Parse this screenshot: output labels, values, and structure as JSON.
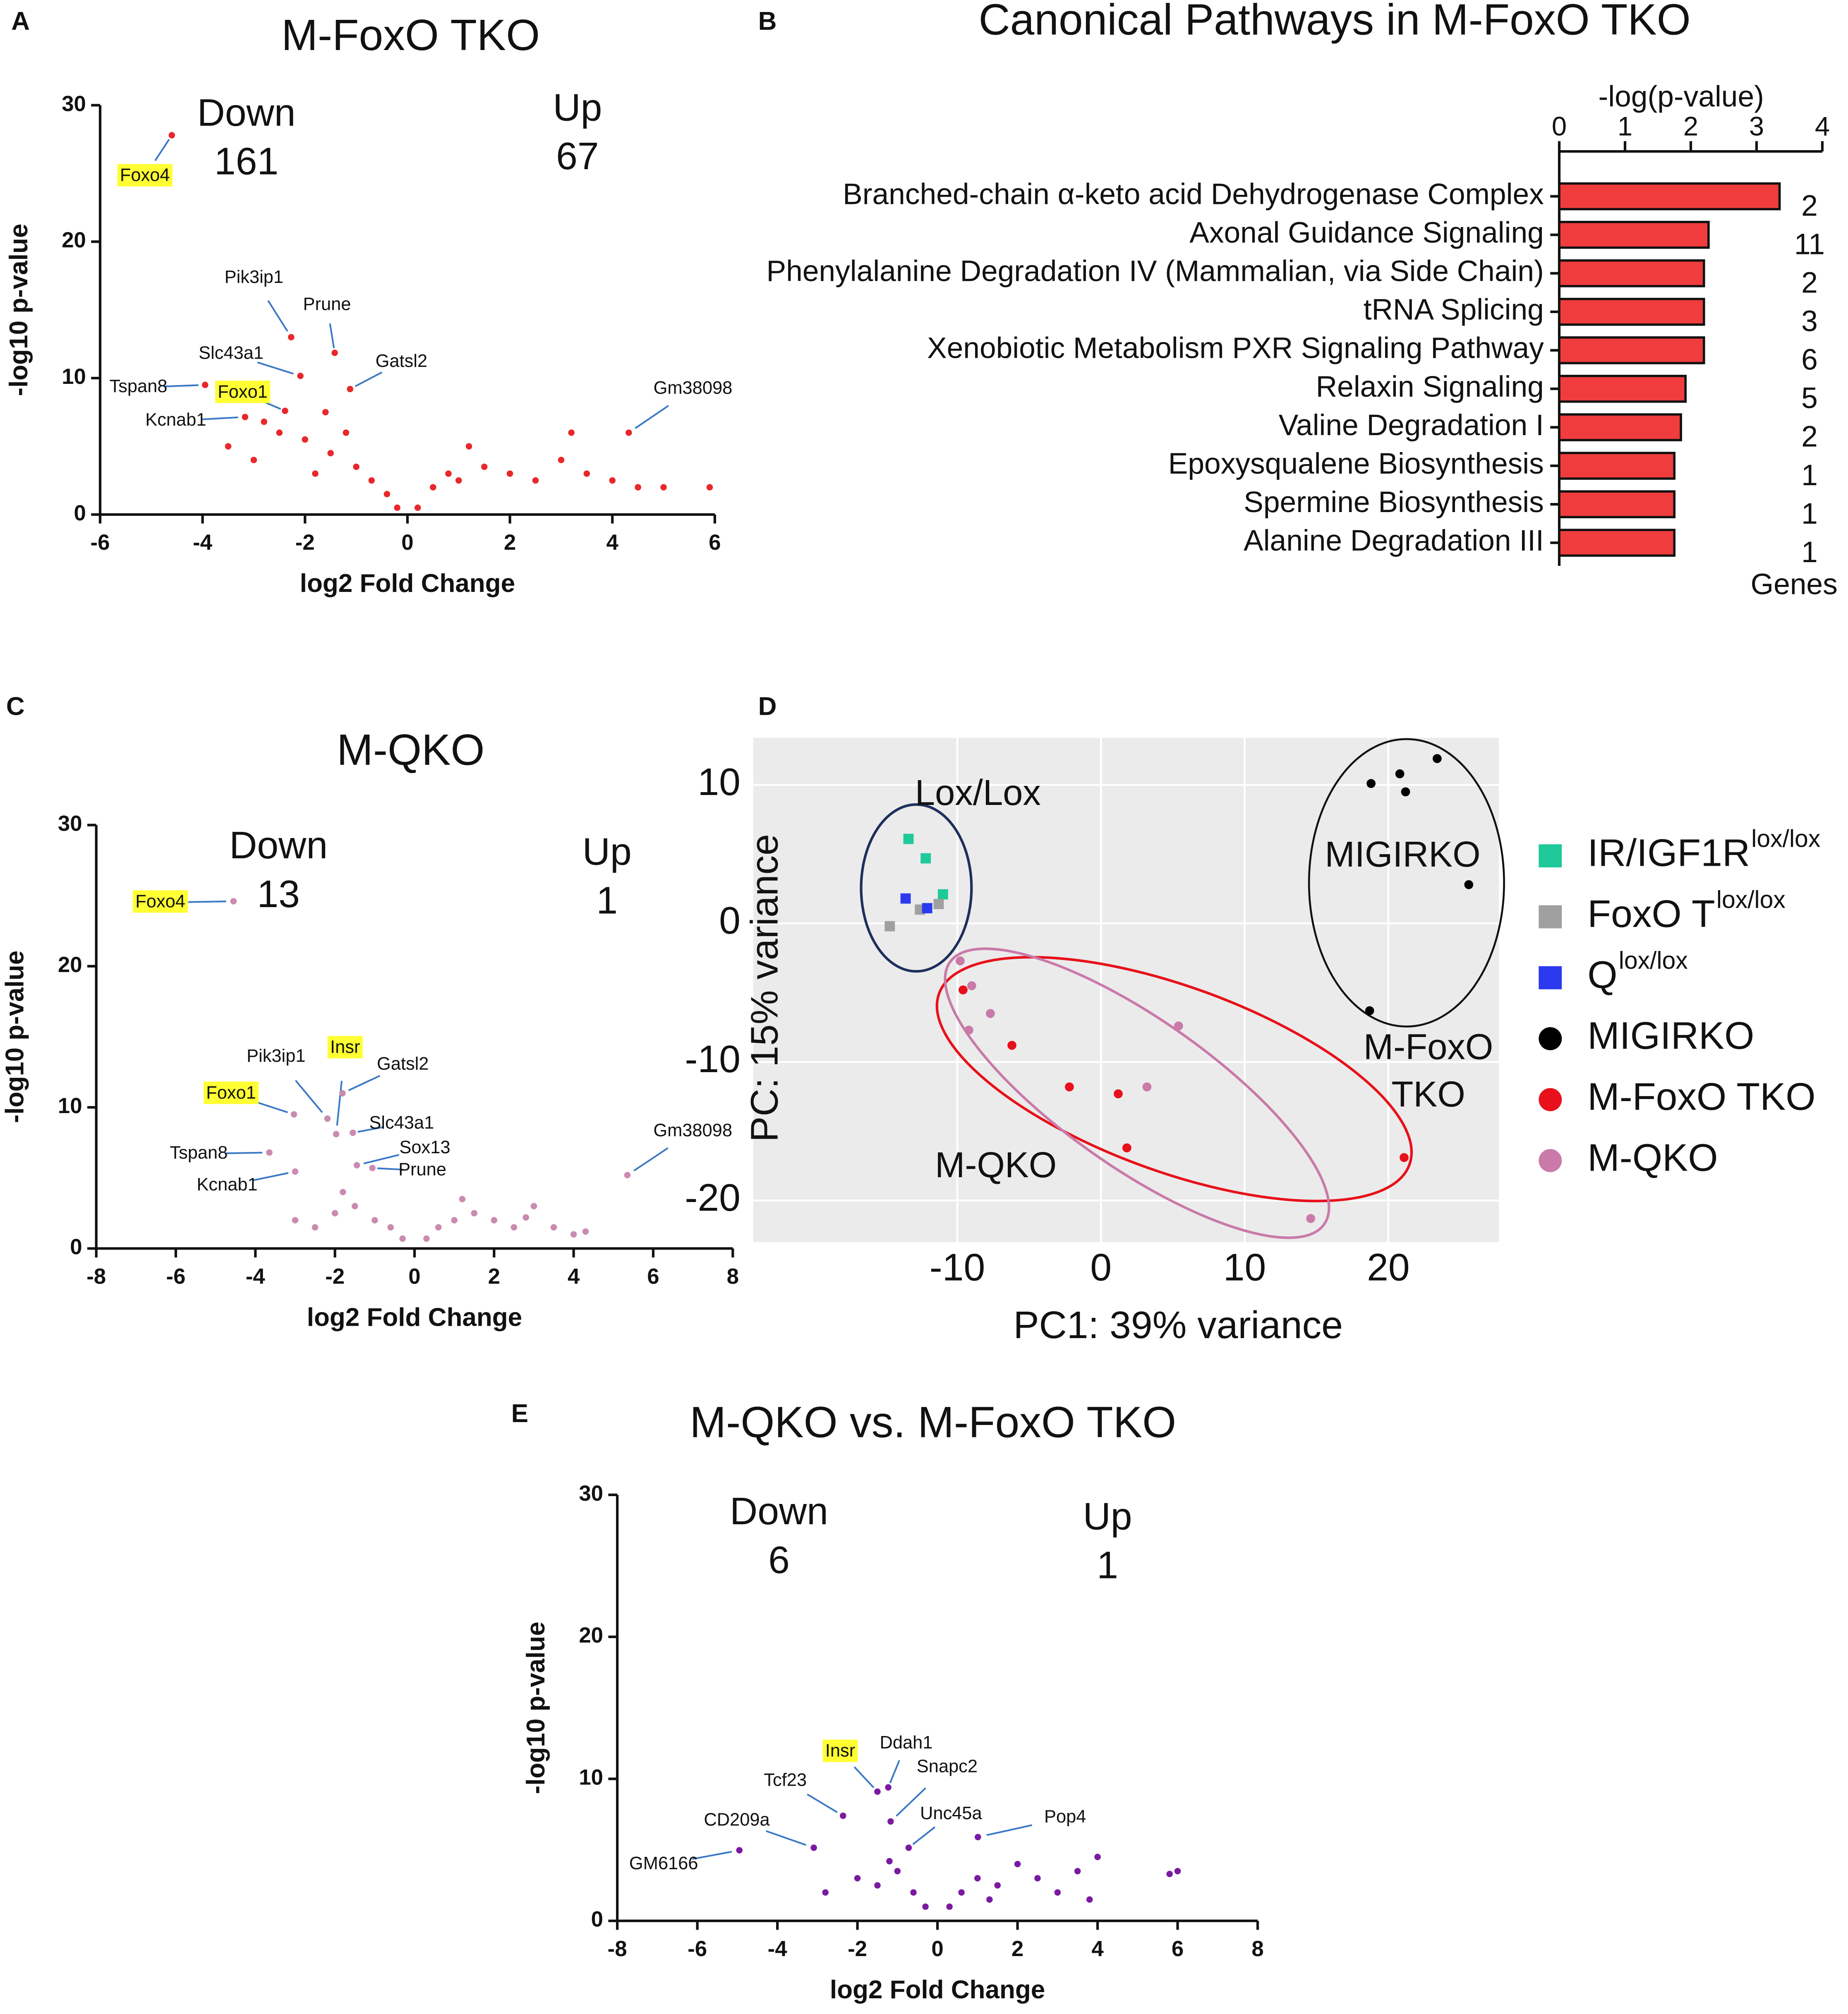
{
  "chart_data": [
    {
      "type": "volcano",
      "panel": "A",
      "title": "M-FoxO TKO",
      "xlabel": "log2 Fold Change",
      "ylabel": "-log10 p-value",
      "xlim": [
        -6,
        6
      ],
      "xticks": [
        -6,
        -4,
        -2,
        0,
        2,
        4,
        6
      ],
      "ylim": [
        0,
        30
      ],
      "yticks": [
        0,
        10,
        20,
        30
      ],
      "color": "#e8282a",
      "down": {
        "label": "Down",
        "count": 161,
        "color": "#2c3e70"
      },
      "up": {
        "label": "Up",
        "count": 67,
        "color": "#e8141a"
      },
      "x": [
        -3.5,
        -3,
        -2.5,
        -2,
        -1.8,
        -1.5,
        -1.2,
        -1,
        -0.7,
        -0.4,
        -0.2,
        0.2,
        0.5,
        0.8,
        1,
        1.5,
        2,
        2.5,
        3,
        3.5,
        4,
        5,
        5.9,
        3.2,
        1.2,
        -2.8,
        -1.6,
        4.5
      ],
      "y": [
        5,
        4,
        6,
        5.5,
        3,
        4.5,
        6,
        3.5,
        2.5,
        1.5,
        0.5,
        0.5,
        2,
        3,
        2.5,
        3.5,
        3,
        2.5,
        4,
        3,
        2.5,
        2,
        2,
        6,
        5,
        6.8,
        7.5,
        2
      ],
      "points": [
        {
          "label": "Foxo4",
          "x": -4.6,
          "y": 27.8,
          "highlight": true
        },
        {
          "label": "Pik3ip1",
          "x": -2.27,
          "y": 13.0,
          "highlight": false
        },
        {
          "label": "Prune",
          "x": -1.42,
          "y": 11.85,
          "highlight": false
        },
        {
          "label": "Slc43a1",
          "x": -2.09,
          "y": 10.16,
          "highlight": false
        },
        {
          "label": "Gatsl2",
          "x": -1.12,
          "y": 9.2,
          "highlight": false
        },
        {
          "label": "Tspan8",
          "x": -3.95,
          "y": 9.5,
          "highlight": false
        },
        {
          "label": "Foxo1",
          "x": -2.39,
          "y": 7.6,
          "highlight": true
        },
        {
          "label": "Kcnab1",
          "x": -3.17,
          "y": 7.15,
          "highlight": false
        },
        {
          "label": "Gm38098",
          "x": 4.32,
          "y": 6.0,
          "highlight": false
        }
      ]
    },
    {
      "type": "bar",
      "orientation": "horizontal",
      "panel": "B",
      "title": "Canonical Pathways in M-FoxO TKO",
      "xlabel": "-log(p-value)",
      "genes_label": "Genes",
      "xlim": [
        0,
        4
      ],
      "xticks": [
        0,
        1,
        2,
        3,
        4
      ],
      "color": "#f03c3c",
      "categories": [
        "Branched-chain α-keto acid Dehydrogenase Complex",
        "Axonal Guidance Signaling",
        "Phenylalanine Degradation IV (Mammalian, via Side Chain)",
        "tRNA Splicing",
        "Xenobiotic Metabolism PXR Signaling Pathway",
        "Relaxin Signaling",
        "Valine Degradation I",
        "Epoxysqualene Biosynthesis",
        "Spermine Biosynthesis",
        "Alanine Degradation III"
      ],
      "values": [
        3.35,
        2.27,
        2.2,
        2.2,
        2.2,
        1.92,
        1.85,
        1.75,
        1.75,
        1.75
      ],
      "genes": [
        2,
        11,
        2,
        3,
        6,
        5,
        2,
        1,
        1,
        1
      ]
    },
    {
      "type": "volcano",
      "panel": "C",
      "title": "M-QKO",
      "xlabel": "log2 Fold Change",
      "ylabel": "-log10 p-value",
      "xlim": [
        -8,
        8
      ],
      "xticks": [
        -8,
        -6,
        -4,
        -2,
        0,
        2,
        4,
        6,
        8
      ],
      "ylim": [
        0,
        30
      ],
      "yticks": [
        0,
        10,
        20,
        30
      ],
      "color": "#c98bb0",
      "down": {
        "label": "Down",
        "count": 13,
        "color": "#2c3e70"
      },
      "up": {
        "label": "Up",
        "count": 1,
        "color": "#e8141a"
      },
      "x": [
        -3,
        -2.5,
        -2,
        -1.5,
        -1,
        -0.6,
        -0.3,
        0.3,
        0.6,
        1,
        1.5,
        2,
        2.5,
        3,
        3.5,
        4,
        4.3,
        -1.8,
        1.2,
        2.8
      ],
      "y": [
        2,
        1.5,
        2.5,
        3,
        2,
        1.5,
        0.7,
        0.7,
        1.5,
        2,
        2.5,
        2,
        1.5,
        3,
        1.5,
        1,
        1.2,
        4,
        3.5,
        2.2
      ],
      "points": [
        {
          "label": "Foxo4",
          "x": -4.55,
          "y": 24.6,
          "highlight": true
        },
        {
          "label": "Pik3ip1",
          "x": -2.19,
          "y": 9.2,
          "highlight": false
        },
        {
          "label": "Insr",
          "x": -1.97,
          "y": 8.1,
          "highlight": true
        },
        {
          "label": "Gatsl2",
          "x": -1.81,
          "y": 11.0,
          "highlight": false
        },
        {
          "label": "Foxo1",
          "x": -3.03,
          "y": 9.5,
          "highlight": true
        },
        {
          "label": "Slc43a1",
          "x": -1.55,
          "y": 8.2,
          "highlight": false
        },
        {
          "label": "Sox13",
          "x": -1.45,
          "y": 5.9,
          "highlight": false
        },
        {
          "label": "Prune",
          "x": -1.06,
          "y": 5.7,
          "highlight": false
        },
        {
          "label": "Tspan8",
          "x": -3.65,
          "y": 6.8,
          "highlight": false
        },
        {
          "label": "Kcnab1",
          "x": -3.0,
          "y": 5.45,
          "highlight": false
        },
        {
          "label": "Gm38098",
          "x": 5.35,
          "y": 5.2,
          "highlight": false
        }
      ]
    },
    {
      "type": "scatter",
      "panel": "D",
      "xlabel": "PC1: 39% variance",
      "ylabel": "PC: 15% variance",
      "xlim": [
        -24.2,
        27.7
      ],
      "xticks": [
        -10,
        0,
        10,
        20
      ],
      "ylim": [
        -23.0,
        13.4
      ],
      "yticks": [
        -20,
        -10,
        0,
        10
      ],
      "grid": true,
      "series": [
        {
          "name": "IR/IGF1R",
          "superscript": "lox/lox",
          "color": "#1ec99a",
          "marker": "square",
          "x": [
            -13.4,
            -12.2,
            -11.0
          ],
          "y": [
            6.1,
            4.7,
            2.1
          ]
        },
        {
          "name": "FoxO T",
          "superscript": "lox/lox",
          "color": "#a0a0a0",
          "marker": "square",
          "x": [
            -14.7,
            -12.6,
            -11.3
          ],
          "y": [
            -0.2,
            1.0,
            1.4
          ]
        },
        {
          "name": "Q",
          "superscript": "lox/lox",
          "color": "#2b3aef",
          "marker": "square",
          "x": [
            -13.6,
            -12.1
          ],
          "y": [
            1.8,
            1.1
          ]
        },
        {
          "name": "MIGIRKO",
          "color": "#000000",
          "marker": "circle",
          "x": [
            18.8,
            20.8,
            21.2,
            23.4,
            25.6,
            18.7
          ],
          "y": [
            10.1,
            10.8,
            9.5,
            11.9,
            2.8,
            -6.3
          ]
        },
        {
          "name": "M-FoxO TKO",
          "color": "#e8101a",
          "marker": "circle",
          "x": [
            -9.6,
            -6.2,
            -2.2,
            1.2,
            1.8,
            21.1
          ],
          "y": [
            -4.8,
            -8.8,
            -11.8,
            -12.3,
            -16.2,
            -16.9
          ]
        },
        {
          "name": "M-QKO",
          "color": "#c97aa8",
          "marker": "circle",
          "x": [
            -9.8,
            -9.0,
            -9.2,
            -7.7,
            3.2,
            5.4,
            14.6
          ],
          "y": [
            -2.7,
            -4.5,
            -7.7,
            -6.5,
            -11.8,
            -7.4,
            -21.3
          ]
        }
      ],
      "annotations": [
        {
          "text": "Lox/Lox",
          "color": "#111111"
        },
        {
          "text": "MIGIRKO",
          "color": "#111111"
        },
        {
          "text": "M-FoxO",
          "color": "#e8101a"
        },
        {
          "text": "TKO",
          "color": "#e8101a"
        },
        {
          "text": "M-QKO",
          "color": "#c97aa8"
        }
      ]
    },
    {
      "type": "volcano",
      "panel": "E",
      "title": "M-QKO vs. M-FoxO TKO",
      "xlabel": "log2 Fold Change",
      "ylabel": "-log10 p-value",
      "xlim": [
        -8,
        8
      ],
      "xticks": [
        -8,
        -6,
        -4,
        -2,
        0,
        2,
        4,
        6,
        8
      ],
      "ylim": [
        0,
        30
      ],
      "yticks": [
        0,
        10,
        20,
        30
      ],
      "color": "#7a1aa0",
      "down": {
        "label": "Down",
        "count": 6,
        "color": "#2c3e70"
      },
      "up": {
        "label": "Up",
        "count": 1,
        "color": "#e8141a"
      },
      "x": [
        -2.8,
        -2,
        -1.5,
        -1,
        -0.6,
        -0.3,
        0.3,
        0.6,
        1,
        1.5,
        2,
        2.5,
        3,
        3.5,
        4,
        6,
        5.8,
        -1.2,
        1.3,
        3.8
      ],
      "y": [
        2,
        3,
        2.5,
        3.5,
        2,
        1,
        1,
        2,
        3,
        2.5,
        4,
        3,
        2,
        3.5,
        4.5,
        3.5,
        3.3,
        4.2,
        1.5,
        1.5
      ],
      "points": [
        {
          "label": "Insr",
          "x": -1.5,
          "y": 9.1,
          "highlight": true
        },
        {
          "label": "Ddah1",
          "x": -1.23,
          "y": 9.4,
          "highlight": false
        },
        {
          "label": "Tcf23",
          "x": -2.36,
          "y": 7.4,
          "highlight": false
        },
        {
          "label": "Snapc2",
          "x": -1.17,
          "y": 7.0,
          "highlight": false
        },
        {
          "label": "CD209a",
          "x": -3.09,
          "y": 5.15,
          "highlight": false
        },
        {
          "label": "Unc45a",
          "x": -0.72,
          "y": 5.15,
          "highlight": false
        },
        {
          "label": "Pop4",
          "x": 1.01,
          "y": 5.9,
          "highlight": false
        },
        {
          "label": "GM6166",
          "x": -4.95,
          "y": 4.97,
          "highlight": false
        }
      ]
    }
  ]
}
